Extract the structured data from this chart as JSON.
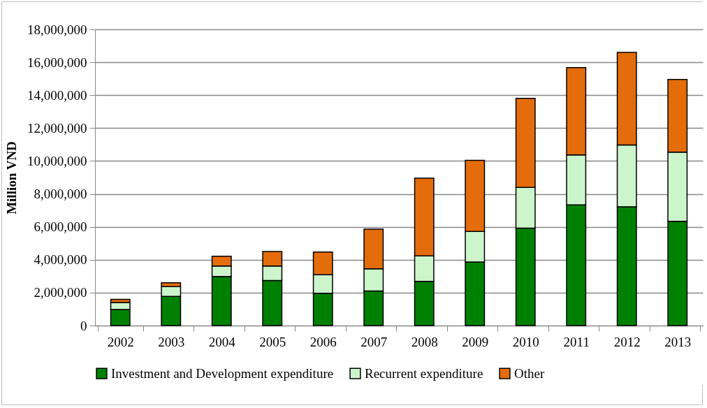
{
  "chart_data": {
    "type": "bar",
    "stacked": true,
    "ylabel": "Million VND",
    "categories": [
      "2002",
      "2003",
      "2004",
      "2005",
      "2006",
      "2007",
      "2008",
      "2009",
      "2010",
      "2011",
      "2012",
      "2013"
    ],
    "series": [
      {
        "name": "Investment and Development expenditure",
        "color": "#008000",
        "values": [
          980000,
          1770000,
          2980000,
          2740000,
          1960000,
          2100000,
          2680000,
          3860000,
          5920000,
          7330000,
          7220000,
          6340000
        ]
      },
      {
        "name": "Recurrent expenditure",
        "color": "#ccf5cc",
        "values": [
          420000,
          600000,
          640000,
          880000,
          1130000,
          1350000,
          1550000,
          1860000,
          2470000,
          3040000,
          3750000,
          4200000
        ]
      },
      {
        "name": "Other",
        "color": "#e46c0a",
        "values": [
          190000,
          230000,
          590000,
          880000,
          1380000,
          2410000,
          4730000,
          4320000,
          5420000,
          5310000,
          5630000,
          4410000
        ]
      }
    ],
    "ylim": [
      0,
      18000000
    ],
    "yticks": [
      0,
      {
        "value": 2000000,
        "label": "2,000,000"
      },
      {
        "value": 4000000,
        "label": "4,000,000"
      },
      {
        "value": 6000000,
        "label": "6,000,000"
      },
      {
        "value": 8000000,
        "label": "8,000,000"
      },
      {
        "value": 10000000,
        "label": "10,000,000"
      },
      {
        "value": 12000000,
        "label": "12,000,000"
      },
      {
        "value": 14000000,
        "label": "14,000,000"
      },
      {
        "value": 16000000,
        "label": "16,000,000"
      },
      {
        "value": 18000000,
        "label": "18,000,000"
      }
    ],
    "grid": "y",
    "legend": "bottom"
  }
}
